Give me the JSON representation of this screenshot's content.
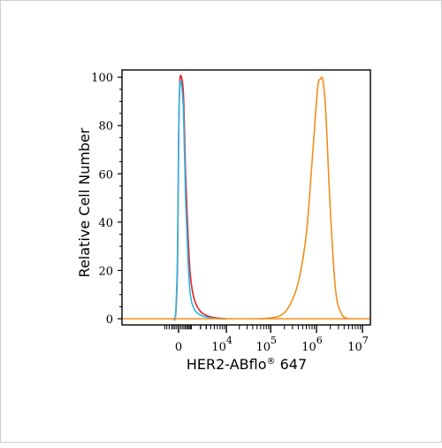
{
  "chart_data": {
    "type": "line",
    "title": "",
    "xlabel": "HER2-ABflo",
    "xlabel_suffix": " 647",
    "xlabel_mark": "®",
    "ylabel": "Relative Cell Number",
    "x_scale": "biexponential",
    "ylim": [
      0,
      100
    ],
    "y_ticks": [
      0,
      20,
      40,
      60,
      80,
      100
    ],
    "x_tick_labels": [
      {
        "base": "0",
        "exp": ""
      },
      {
        "base": "10",
        "exp": "4"
      },
      {
        "base": "10",
        "exp": "5"
      },
      {
        "base": "10",
        "exp": "6"
      },
      {
        "base": "10",
        "exp": "7"
      }
    ],
    "series": [
      {
        "color": "#e8202a",
        "x": [
          -300,
          -150,
          -50,
          0,
          60,
          150,
          280,
          420,
          600,
          800,
          1200,
          2000,
          3500,
          6000,
          10000
        ],
        "y": [
          0,
          2,
          25,
          70,
          97,
          100,
          92,
          60,
          35,
          18,
          8,
          3,
          1,
          0.3,
          0
        ]
      },
      {
        "color": "#2bb7e4",
        "x": [
          -300,
          -150,
          -50,
          0,
          60,
          150,
          280,
          420,
          600,
          800,
          1200,
          2000,
          3500,
          6000,
          10000
        ],
        "y": [
          0,
          3,
          30,
          75,
          96,
          97,
          85,
          50,
          25,
          10,
          4,
          1.5,
          0.5,
          0,
          0
        ]
      },
      {
        "color": "#f28e1c",
        "x": [
          60000,
          150000,
          250000,
          400000,
          600000,
          800000,
          1000000,
          1100000,
          1200000,
          1300000,
          1400000,
          1600000,
          2000000,
          2600000,
          3500000,
          5000000
        ],
        "y": [
          0,
          1,
          5,
          15,
          35,
          65,
          90,
          98,
          99,
          100,
          98,
          85,
          45,
          12,
          2,
          0
        ]
      }
    ],
    "colors": {
      "red_series": "#e8202a",
      "blue_series": "#2bb7e4",
      "orange_series": "#f28e1c",
      "axis": "#000000"
    },
    "grid": false,
    "legend": "none"
  }
}
